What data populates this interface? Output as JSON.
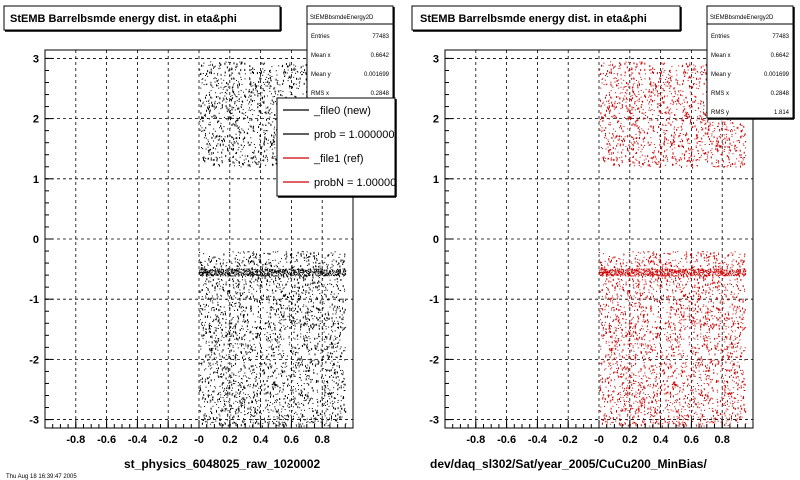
{
  "panels": [
    {
      "title": "StEMB Barrelbsmde energy dist. in eta&phi",
      "xlabel": "st_physics_6048025_raw_1020002",
      "stats": {
        "name": "StEMBbsmdeEnergy2D",
        "rows": [
          {
            "label": "Entries",
            "value": "77483"
          },
          {
            "label": "Mean x",
            "value": "0.6642"
          },
          {
            "label": "Mean y",
            "value": "0.001699"
          },
          {
            "label": "RMS x",
            "value": "0.2848"
          }
        ]
      },
      "legend": [
        "_file0 (new)",
        "prob = 1.000000",
        "_file1 (ref)",
        "probN = 1.000000"
      ],
      "legend_colors": [
        "#000000",
        "#000000",
        "#cc0000",
        "#cc0000"
      ]
    },
    {
      "title": "StEMB Barrelbsmde energy dist. in eta&phi",
      "xlabel": "dev/daq_sl302/Sat/year_2005/CuCu200_MinBias/",
      "stats": {
        "name": "StEMBbsmdeEnergy2D",
        "rows": [
          {
            "label": "Entries",
            "value": "77483"
          },
          {
            "label": "Mean x",
            "value": "0.6642"
          },
          {
            "label": "Mean y",
            "value": "0.001699"
          },
          {
            "label": "RMS x",
            "value": "0.2848"
          },
          {
            "label": "RMS y",
            "value": "1.814"
          }
        ]
      }
    }
  ],
  "colors": {
    "left_points": "#000000",
    "right_points": "#cc0000",
    "grid": "#000000"
  },
  "footer_text": "Thu Aug 18 16:39:47 2005",
  "chart_data": [
    {
      "type": "scatter",
      "title": "StEMB Barrelbsmde energy dist. in eta&phi",
      "xlabel": "st_physics_6048025_raw_1020002",
      "ylabel": "",
      "xlim": [
        -1,
        1
      ],
      "ylim": [
        -3.14,
        3.14
      ],
      "xticks": [
        "-0.8",
        "-0.6",
        "-0.4",
        "-0.2",
        "-0",
        "0.2",
        "0.4",
        "0.6",
        "0.8"
      ],
      "yticks": [
        "-3",
        "-2",
        "-1",
        "0",
        "1",
        "2",
        "3"
      ],
      "grid": true,
      "series_color": "#000000",
      "regions": [
        {
          "x": [
            0.0,
            0.95
          ],
          "y": [
            -3.1,
            -0.2
          ],
          "density": "high"
        },
        {
          "x": [
            0.0,
            0.95
          ],
          "y": [
            1.2,
            2.95
          ],
          "density": "medium"
        }
      ],
      "band_y": -0.55
    },
    {
      "type": "scatter",
      "title": "StEMB Barrelbsmde energy dist. in eta&phi",
      "xlabel": "dev/daq_sl302/Sat/year_2005/CuCu200_MinBias/",
      "ylabel": "",
      "xlim": [
        -1,
        1
      ],
      "ylim": [
        -3.14,
        3.14
      ],
      "xticks": [
        "-0.8",
        "-0.6",
        "-0.4",
        "-0.2",
        "-0",
        "0.2",
        "0.4",
        "0.6",
        "0.8"
      ],
      "yticks": [
        "-3",
        "-2",
        "-1",
        "0",
        "1",
        "2",
        "3"
      ],
      "grid": true,
      "series_color": "#cc0000",
      "regions": [
        {
          "x": [
            0.0,
            0.95
          ],
          "y": [
            -3.1,
            -0.2
          ],
          "density": "high"
        },
        {
          "x": [
            0.0,
            0.95
          ],
          "y": [
            1.2,
            2.95
          ],
          "density": "medium"
        }
      ],
      "band_y": -0.55
    }
  ]
}
